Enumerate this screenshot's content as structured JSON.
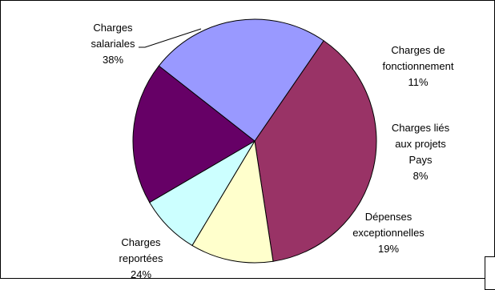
{
  "chart_data": {
    "type": "pie",
    "title": "",
    "slices": [
      {
        "label_lines": [
          "Charges",
          "salariales"
        ],
        "pct_text": "38%",
        "value": 38,
        "color": "#993366"
      },
      {
        "label_lines": [
          "Charges de",
          "fonctionnement"
        ],
        "pct_text": "11%",
        "value": 11,
        "color": "#FFFFCC"
      },
      {
        "label_lines": [
          "Charges liés",
          "aux projets",
          "Pays"
        ],
        "pct_text": "8%",
        "value": 8,
        "color": "#CCFFFF"
      },
      {
        "label_lines": [
          "Dépenses",
          "exceptionnelles"
        ],
        "pct_text": "19%",
        "value": 19,
        "color": "#660066"
      },
      {
        "label_lines": [
          "Charges",
          "reportées"
        ],
        "pct_text": "24%",
        "value": 24,
        "color": "#9999FF"
      }
    ],
    "legend": "none",
    "outline_color": "#000000"
  }
}
